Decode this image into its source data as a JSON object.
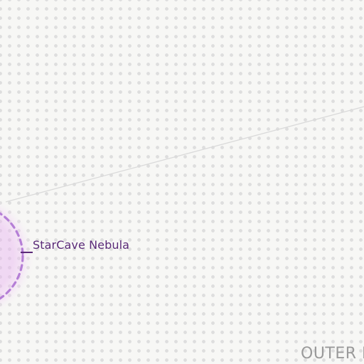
{
  "map": {
    "place_label": "StarCave Nebula",
    "region_label": "OUTER I"
  },
  "colors": {
    "background": "#f7f7f5",
    "dot_grid": "#dedede",
    "nebula_ring": "#b57fd6",
    "nebula_glow": "#e8b0f0",
    "label_text": "#5a2a78",
    "route_line": "#dadada",
    "region_text": "#9a9a9a"
  },
  "icons": {
    "nebula_marker": "dashed-ring-icon"
  }
}
